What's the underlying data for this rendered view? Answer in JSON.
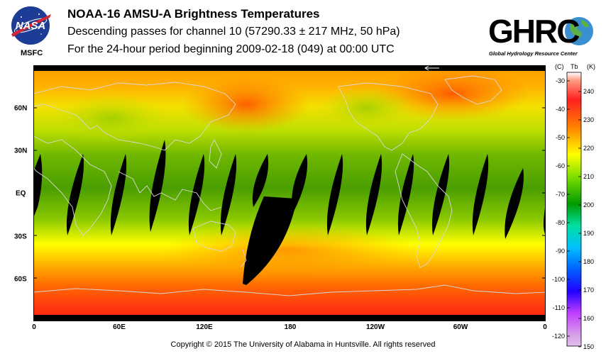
{
  "header": {
    "title": "NOAA-16 AMSU-A Brightness Temperatures",
    "subtitle_channel": "Descending passes for channel 10 (57290.33 ± 217 MHz, 50 hPa)",
    "subtitle_period": "For the 24-hour period beginning 2009-02-18 (049) at 00:00 UTC"
  },
  "logos": {
    "nasa": "NASA",
    "msfc": "MSFC",
    "ghrc": "GHRC",
    "ghrc_full": "Global Hydrology Resource Center"
  },
  "map": {
    "lon_labels": [
      "0",
      "60E",
      "120E",
      "180",
      "120W",
      "60W",
      "0"
    ],
    "lat_labels": [
      "60N",
      "30N",
      "EQ",
      "30S",
      "60S"
    ]
  },
  "colorbar": {
    "unit_c": "(C)",
    "tb_label": "Tb",
    "unit_k": "(K)",
    "celsius_ticks": [
      "-30",
      "-40",
      "-50",
      "-60",
      "-70",
      "-80",
      "-90",
      "-100",
      "-110",
      "-120"
    ],
    "kelvin_ticks": [
      "240",
      "230",
      "220",
      "210",
      "200",
      "190",
      "180",
      "170",
      "160",
      "150"
    ],
    "colors": [
      "#ff9900",
      "#ff3300",
      "#ffff00",
      "#00aa00",
      "#0000ff",
      "#aa00ff"
    ]
  },
  "footer": {
    "copyright": "Copyright © 2015 The University of Alabama in Huntsville.  All rights reserved"
  }
}
